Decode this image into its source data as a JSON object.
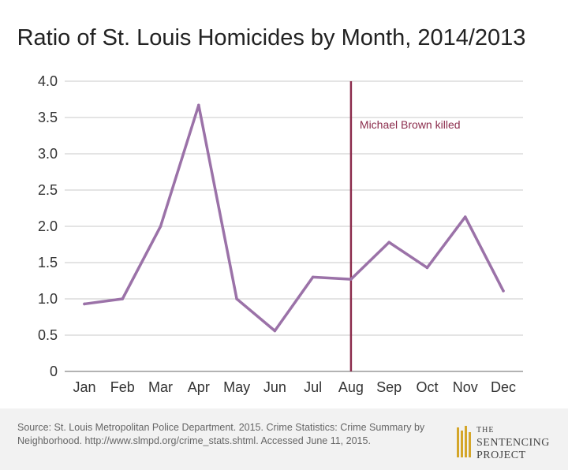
{
  "chart_data": {
    "type": "line",
    "title": "Ratio of St. Louis Homicides by Month, 2014/2013",
    "categories": [
      "Jan",
      "Feb",
      "Mar",
      "Apr",
      "May",
      "Jun",
      "Jul",
      "Aug",
      "Sep",
      "Oct",
      "Nov",
      "Dec"
    ],
    "series": [
      {
        "values": [
          0.93,
          1.0,
          2.0,
          3.67,
          1.0,
          0.56,
          1.3,
          1.27,
          1.78,
          1.43,
          2.13,
          1.11
        ]
      }
    ],
    "ylim": [
      0,
      4.0
    ],
    "yticks": [
      "0",
      "0.5",
      "1.0",
      "1.5",
      "2.0",
      "2.5",
      "3.0",
      "3.5",
      "4.0"
    ],
    "grid": true,
    "line_color": "#9b72a8",
    "annotation": {
      "label": "Michael Brown killed",
      "category": "Aug",
      "color": "#8b2c4c"
    }
  },
  "footer": {
    "source": "Source: St. Louis Metropolitan Police Department. 2015. Crime Statistics: Crime Summary by Neighborhood. http://www.slmpd.org/crime_stats.shtml. Accessed June 11, 2015.",
    "logo_line1": "THE",
    "logo_line2": "SENTENCING",
    "logo_line3": "PROJECT"
  }
}
